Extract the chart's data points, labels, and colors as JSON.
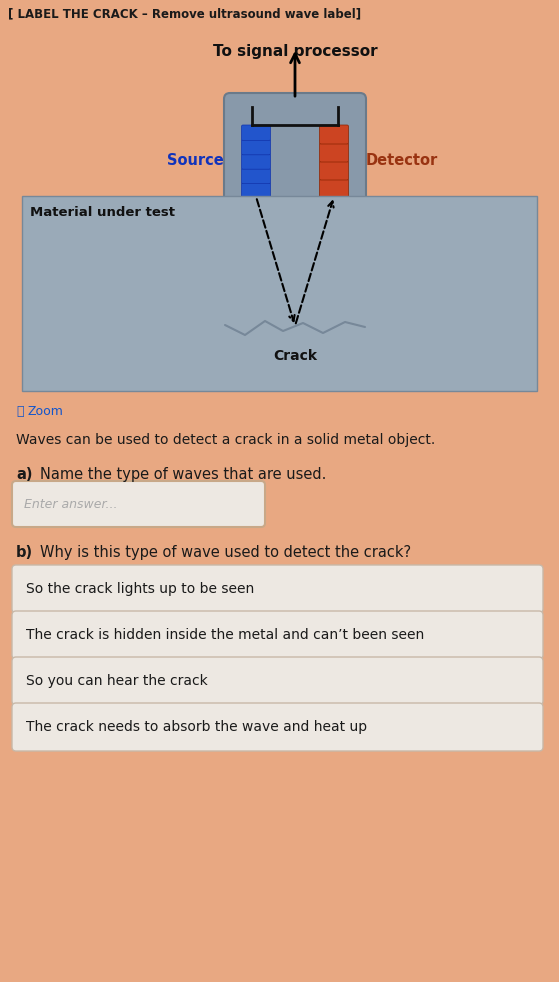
{
  "bg_color": "#e8a882",
  "header_text": "[ LABEL THE CRACK – Remove ultrasound wave label]",
  "header_color": "#1a1a1a",
  "diagram": {
    "metal_color": "#9aaab8",
    "device_color": "#8899aa",
    "source_color": "#2255cc",
    "detector_color": "#cc4422",
    "label_source": "Source",
    "label_source_color": "#1133bb",
    "label_detector": "Detector",
    "label_detector_color": "#993311",
    "label_material": "Material under test",
    "label_crack": "Crack",
    "label_signal": "To signal processor",
    "crack_color": "#778899"
  },
  "zoom_label": "Zoom",
  "question_intro": "Waves can be used to detect a crack in a solid metal object.",
  "q_a_label": "a)",
  "q_a_text": "Name the type of waves that are used.",
  "q_a_placeholder": "Enter answer...",
  "q_b_label": "b)",
  "q_b_text": "Why is this type of wave used to detect the crack?",
  "options": [
    "So the crack lights up to be seen",
    "The crack is hidden inside the metal and can’t been seen",
    "So you can hear the crack",
    "The crack needs to absorb the wave and heat up"
  ],
  "option_bg": "#ede8e2",
  "option_border": "#c8b8a8",
  "text_color": "#1a1a1a",
  "answer_box_bg": "#ede8e2",
  "answer_box_border": "#c8a888"
}
